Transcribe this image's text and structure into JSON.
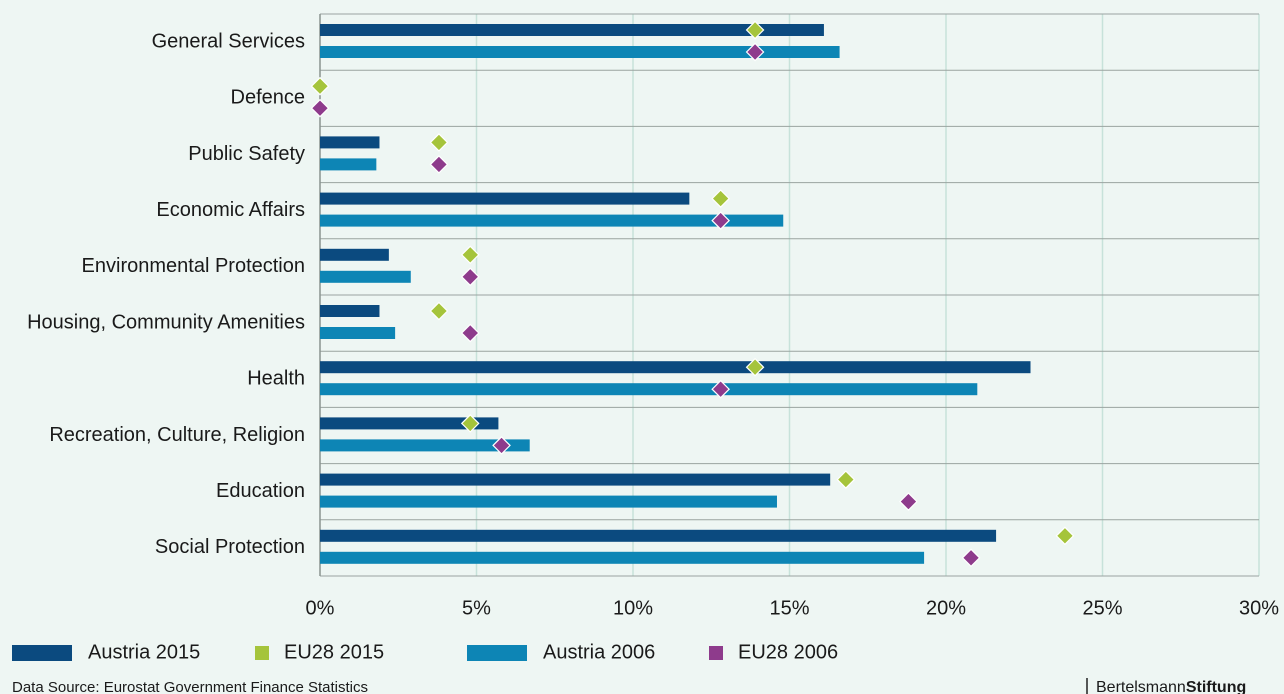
{
  "chart_data": {
    "type": "bar",
    "orientation": "horizontal",
    "categories": [
      "General Services",
      "Defence",
      "Public Safety",
      "Economic Affairs",
      "Environmental Protection",
      "Housing, Community Amenities",
      "Health",
      "Recreation, Culture, Religion",
      "Education",
      "Social Protection"
    ],
    "series": [
      {
        "name": "Austria 2015",
        "color": "#0b4a7f",
        "style": "bar",
        "row": 0,
        "values": [
          16.1,
          0,
          1.9,
          11.8,
          2.2,
          1.9,
          22.7,
          5.7,
          16.3,
          21.6
        ]
      },
      {
        "name": "EU28 2015",
        "color": "#a5c43b",
        "style": "diamond",
        "row": 0,
        "values": [
          13.9,
          0,
          3.8,
          12.8,
          4.8,
          3.8,
          13.9,
          4.8,
          16.8,
          23.8
        ]
      },
      {
        "name": "Austria 2006",
        "color": "#0d85b5",
        "style": "bar",
        "row": 1,
        "values": [
          16.6,
          0,
          1.8,
          14.8,
          2.9,
          2.4,
          21.0,
          6.7,
          14.6,
          19.3
        ]
      },
      {
        "name": "EU28 2006",
        "color": "#8e3b8c",
        "style": "diamond",
        "row": 1,
        "values": [
          13.9,
          0,
          3.8,
          12.8,
          4.8,
          4.8,
          12.8,
          5.8,
          18.8,
          20.8
        ]
      }
    ],
    "xlim": [
      0,
      30
    ],
    "xticks": [
      {
        "value": 0,
        "label": "0%"
      },
      {
        "value": 5,
        "label": "5%"
      },
      {
        "value": 10,
        "label": "10%"
      },
      {
        "value": 15,
        "label": "15%"
      },
      {
        "value": 20,
        "label": "20%"
      },
      {
        "value": 25,
        "label": "25%"
      },
      {
        "value": 30,
        "label": "30%"
      }
    ],
    "grid": true
  },
  "footer": {
    "source": "Data Source: Eurostat Government Finance Statistics",
    "brand": [
      "Bertelsmann",
      "Stiftung"
    ]
  }
}
